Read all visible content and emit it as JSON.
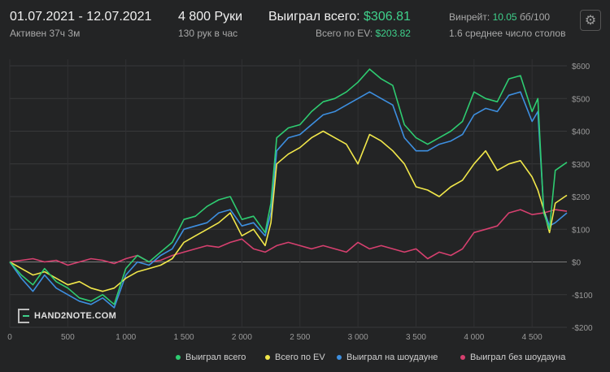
{
  "header": {
    "date_range": "01.07.2021 - 12.07.2021",
    "active_time": "Активен 37ч 3м",
    "hands": "4 800 Руки",
    "hands_per_hour": "130 рук в час",
    "won_label": "Выиграл всего:",
    "won_value": "$306.81",
    "ev_label": "Всего по EV:",
    "ev_value": "$203.82",
    "winrate_label": "Винрейт:",
    "winrate_value": "10.05",
    "winrate_unit": "бб/100",
    "tables": "1.6 среднее число столов"
  },
  "logo": {
    "text": "HAND2NOTE.COM"
  },
  "icons": {
    "settings": "gear-icon"
  },
  "colors": {
    "won_total": "#2ecc71",
    "ev_total": "#f1e74a",
    "showdown": "#3d8fe0",
    "no_showdown": "#d6406f",
    "background": "#232425",
    "grid": "#3a3b3c"
  },
  "chart_data": {
    "type": "line",
    "xlabel": "",
    "ylabel": "",
    "xlim": [
      0,
      4800
    ],
    "ylim": [
      -200,
      620
    ],
    "x_ticks": [
      0,
      500,
      1000,
      1500,
      2000,
      2500,
      3000,
      3500,
      4000,
      4500
    ],
    "x_tick_labels": [
      "0",
      "500",
      "1 000",
      "1 500",
      "2 000",
      "2 500",
      "3 000",
      "3 500",
      "4 000",
      "4 500"
    ],
    "y_ticks": [
      600,
      500,
      400,
      300,
      200,
      100,
      0,
      -100,
      -200
    ],
    "y_tick_labels": [
      "$600",
      "$500",
      "$400",
      "$300",
      "$200",
      "$100",
      "$0",
      "-$100",
      "-$200"
    ],
    "grid": true,
    "legend_position": "bottom-right",
    "series": [
      {
        "name": "Выиграл всего",
        "color": "#2ecc71",
        "x": [
          0,
          100,
          200,
          300,
          400,
          500,
          600,
          700,
          800,
          900,
          1000,
          1100,
          1200,
          1300,
          1400,
          1500,
          1600,
          1700,
          1800,
          1900,
          2000,
          2100,
          2200,
          2250,
          2300,
          2400,
          2500,
          2600,
          2700,
          2800,
          2900,
          3000,
          3100,
          3200,
          3300,
          3400,
          3500,
          3600,
          3700,
          3800,
          3900,
          4000,
          4100,
          4200,
          4300,
          4400,
          4500,
          4550,
          4600,
          4650,
          4700,
          4800
        ],
        "values": [
          0,
          -40,
          -70,
          -20,
          -60,
          -80,
          -110,
          -120,
          -100,
          -130,
          -20,
          20,
          0,
          30,
          60,
          130,
          140,
          170,
          190,
          200,
          130,
          140,
          90,
          180,
          380,
          410,
          420,
          460,
          490,
          500,
          520,
          550,
          590,
          560,
          540,
          420,
          380,
          360,
          380,
          400,
          430,
          520,
          500,
          490,
          560,
          570,
          460,
          500,
          150,
          100,
          280,
          305
        ]
      },
      {
        "name": "Всего по EV",
        "color": "#f1e74a",
        "x": [
          0,
          100,
          200,
          300,
          400,
          500,
          600,
          700,
          800,
          900,
          1000,
          1100,
          1200,
          1300,
          1400,
          1500,
          1600,
          1700,
          1800,
          1900,
          2000,
          2100,
          2200,
          2250,
          2300,
          2400,
          2500,
          2600,
          2700,
          2800,
          2900,
          3000,
          3100,
          3200,
          3300,
          3400,
          3500,
          3600,
          3700,
          3800,
          3900,
          4000,
          4100,
          4200,
          4300,
          4400,
          4500,
          4550,
          4600,
          4650,
          4700,
          4800
        ],
        "values": [
          0,
          -20,
          -40,
          -30,
          -50,
          -70,
          -60,
          -80,
          -90,
          -80,
          -50,
          -30,
          -20,
          -10,
          10,
          60,
          80,
          100,
          120,
          150,
          80,
          100,
          50,
          120,
          300,
          330,
          350,
          380,
          400,
          380,
          360,
          300,
          390,
          370,
          340,
          300,
          230,
          220,
          200,
          230,
          250,
          300,
          340,
          280,
          300,
          310,
          260,
          220,
          160,
          90,
          180,
          204
        ]
      },
      {
        "name": "Выиграл на шоудауне",
        "color": "#3d8fe0",
        "x": [
          0,
          100,
          200,
          300,
          400,
          500,
          600,
          700,
          800,
          900,
          1000,
          1100,
          1200,
          1300,
          1400,
          1500,
          1600,
          1700,
          1800,
          1900,
          2000,
          2100,
          2200,
          2250,
          2300,
          2400,
          2500,
          2600,
          2700,
          2800,
          2900,
          3000,
          3100,
          3200,
          3300,
          3400,
          3500,
          3600,
          3700,
          3800,
          3900,
          4000,
          4100,
          4200,
          4300,
          4400,
          4500,
          4550,
          4600,
          4650,
          4700,
          4800
        ],
        "values": [
          0,
          -50,
          -90,
          -40,
          -80,
          -100,
          -120,
          -130,
          -110,
          -140,
          -40,
          0,
          -10,
          20,
          40,
          100,
          110,
          120,
          150,
          160,
          110,
          120,
          80,
          150,
          340,
          380,
          390,
          420,
          450,
          460,
          480,
          500,
          520,
          500,
          480,
          380,
          340,
          340,
          360,
          370,
          390,
          450,
          470,
          460,
          510,
          520,
          430,
          460,
          160,
          110,
          120,
          150
        ]
      },
      {
        "name": "Выиграл без шоудауна",
        "color": "#d6406f",
        "x": [
          0,
          100,
          200,
          300,
          400,
          500,
          600,
          700,
          800,
          900,
          1000,
          1100,
          1200,
          1300,
          1400,
          1500,
          1600,
          1700,
          1800,
          1900,
          2000,
          2100,
          2200,
          2300,
          2400,
          2500,
          2600,
          2700,
          2800,
          2900,
          3000,
          3100,
          3200,
          3300,
          3400,
          3500,
          3600,
          3700,
          3800,
          3900,
          4000,
          4100,
          4200,
          4300,
          4400,
          4500,
          4600,
          4700,
          4800
        ],
        "values": [
          0,
          5,
          10,
          0,
          5,
          -10,
          0,
          10,
          5,
          -5,
          10,
          20,
          0,
          5,
          20,
          30,
          40,
          50,
          45,
          60,
          70,
          40,
          30,
          50,
          60,
          50,
          40,
          50,
          40,
          30,
          60,
          40,
          50,
          40,
          30,
          40,
          10,
          30,
          20,
          40,
          90,
          100,
          110,
          150,
          160,
          145,
          150,
          160,
          155
        ]
      }
    ]
  },
  "legend": [
    {
      "label": "Выиграл всего",
      "color": "#2ecc71"
    },
    {
      "label": "Всего по EV",
      "color": "#f1e74a"
    },
    {
      "label": "Выиграл на шоудауне",
      "color": "#3d8fe0"
    },
    {
      "label": "Выиграл без шоудауна",
      "color": "#d6406f"
    }
  ]
}
